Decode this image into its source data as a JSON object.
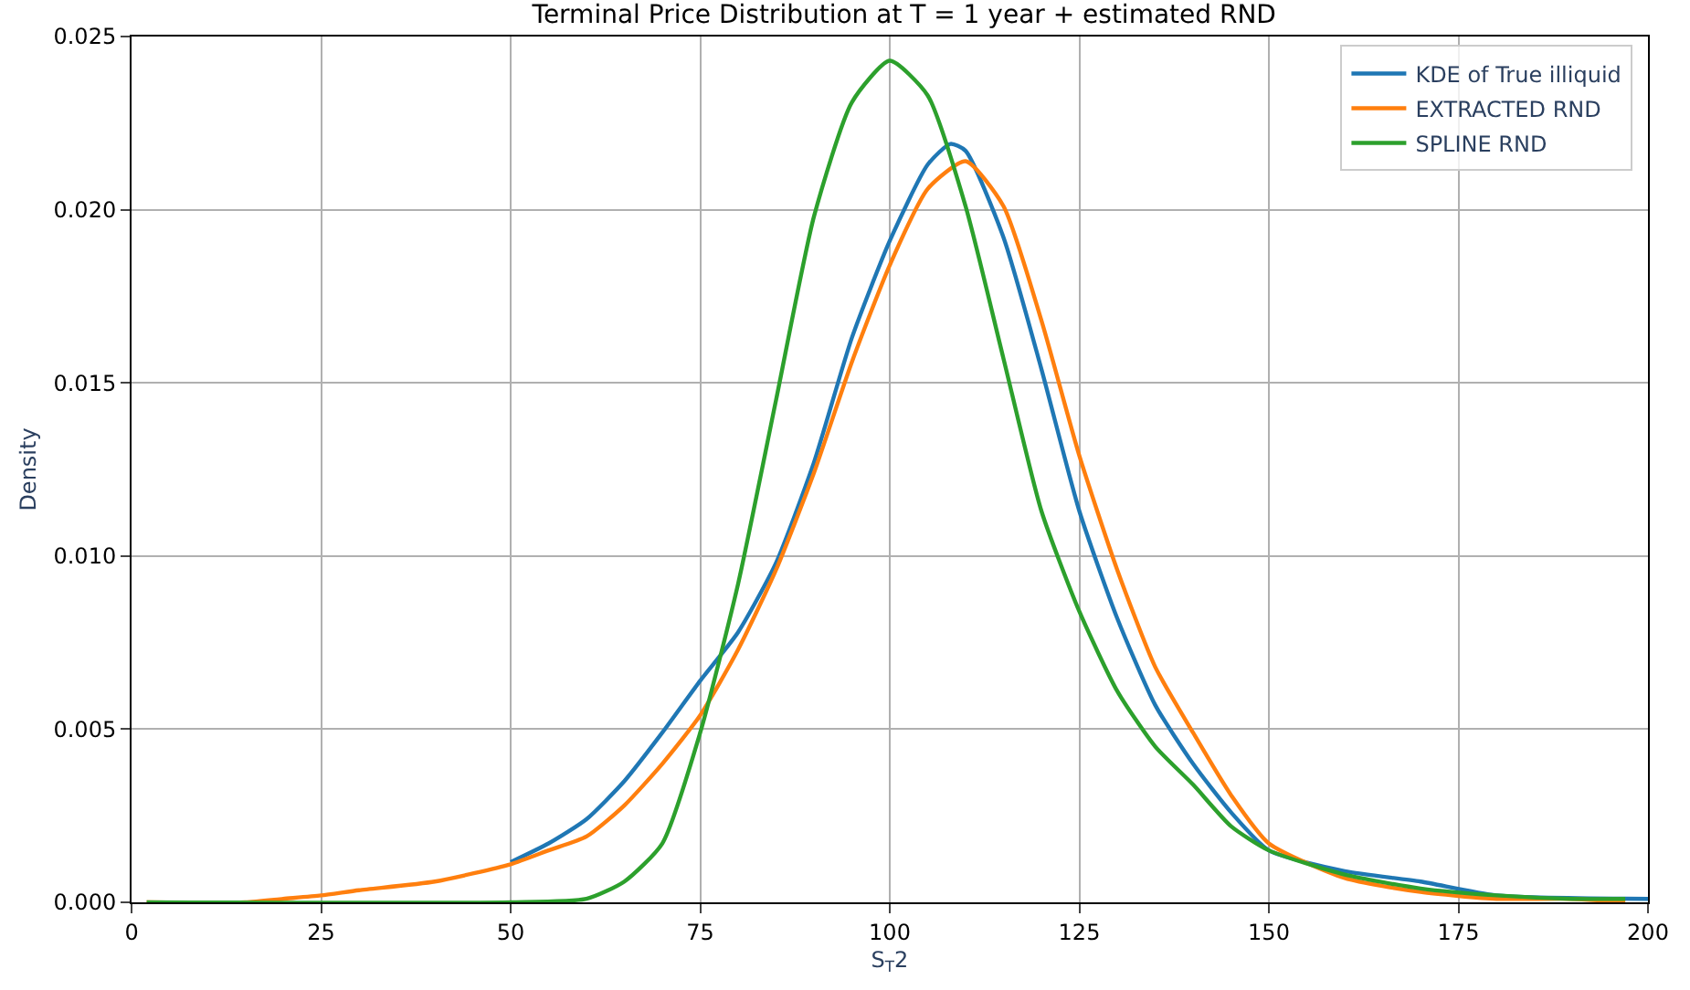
{
  "chart_data": {
    "type": "line",
    "title": "Terminal Price Distribution at T = 1 year + estimated RND",
    "xlabel": "S$_{T}$2",
    "ylabel": "Density",
    "xlim": [
      0,
      200
    ],
    "xticks": [
      0,
      25,
      50,
      75,
      100,
      125,
      150,
      175,
      200
    ],
    "ylim": [
      0,
      0.025
    ],
    "yticks": [
      {
        "value": 0,
        "label": "0.000"
      },
      {
        "value": 0.005,
        "label": "0.005"
      },
      {
        "value": 0.01,
        "label": "0.010"
      },
      {
        "value": 0.015,
        "label": "0.015"
      },
      {
        "value": 0.02,
        "label": "0.020"
      },
      {
        "value": 0.025,
        "label": "0.025"
      }
    ],
    "grid": true,
    "legend": "top right",
    "line_style": "solid",
    "marker": "none",
    "series": [
      {
        "name": "KDE of True illiquid",
        "color": "#1f77b4",
        "x": [
          50,
          55,
          60,
          65,
          70,
          75,
          80,
          85,
          90,
          95,
          100,
          105,
          108,
          110,
          115,
          120,
          125,
          130,
          135,
          140,
          145,
          150,
          160,
          170,
          180,
          190,
          200
        ],
        "values": [
          0.00116,
          0.0017,
          0.0024,
          0.0035,
          0.0049,
          0.0064,
          0.0078,
          0.0098,
          0.0127,
          0.0163,
          0.0191,
          0.0213,
          0.0219,
          0.0217,
          0.0192,
          0.0154,
          0.0113,
          0.0082,
          0.0057,
          0.004,
          0.0026,
          0.0015,
          0.0009,
          0.0006,
          0.0002,
          null,
          0.0001
        ]
      },
      {
        "name": "EXTRACTED RND",
        "color": "#ff7f0e",
        "x": [
          2,
          15,
          20,
          25,
          30,
          40,
          50,
          55,
          60,
          65,
          70,
          75,
          80,
          85,
          90,
          95,
          100,
          105,
          110,
          115,
          120,
          125,
          130,
          135,
          140,
          145,
          150,
          160,
          170,
          180,
          190,
          197
        ],
        "values": [
          0,
          0,
          0.0001,
          0.0002,
          0.00035,
          0.0006,
          0.0011,
          0.0015,
          0.0019,
          0.0028,
          0.004,
          0.0054,
          0.0073,
          0.0096,
          0.0124,
          0.0156,
          0.0184,
          0.0206,
          0.0214,
          0.0201,
          0.0168,
          0.0129,
          0.0096,
          0.0068,
          0.0049,
          0.0031,
          0.0017,
          0.0007,
          0.0003,
          0.0001,
          0.0001,
          0
        ]
      },
      {
        "name": "SPLINE RND",
        "color": "#2ca02c",
        "x": [
          2,
          50,
          60,
          65,
          70,
          75,
          80,
          85,
          90,
          95,
          100,
          105,
          110,
          115,
          120,
          125,
          130,
          135,
          140,
          145,
          150,
          160,
          170,
          180,
          190,
          197
        ],
        "values": [
          0,
          0,
          0.0001,
          0.0006,
          0.0017,
          0.0049,
          0.0092,
          0.0145,
          0.0198,
          0.0231,
          0.0243,
          0.0233,
          0.0201,
          0.0157,
          0.0113,
          0.0084,
          0.0061,
          0.0045,
          0.0034,
          0.0022,
          0.0015,
          0.0008,
          0.0004,
          0.0002,
          0.0001,
          0.0001
        ]
      }
    ]
  }
}
